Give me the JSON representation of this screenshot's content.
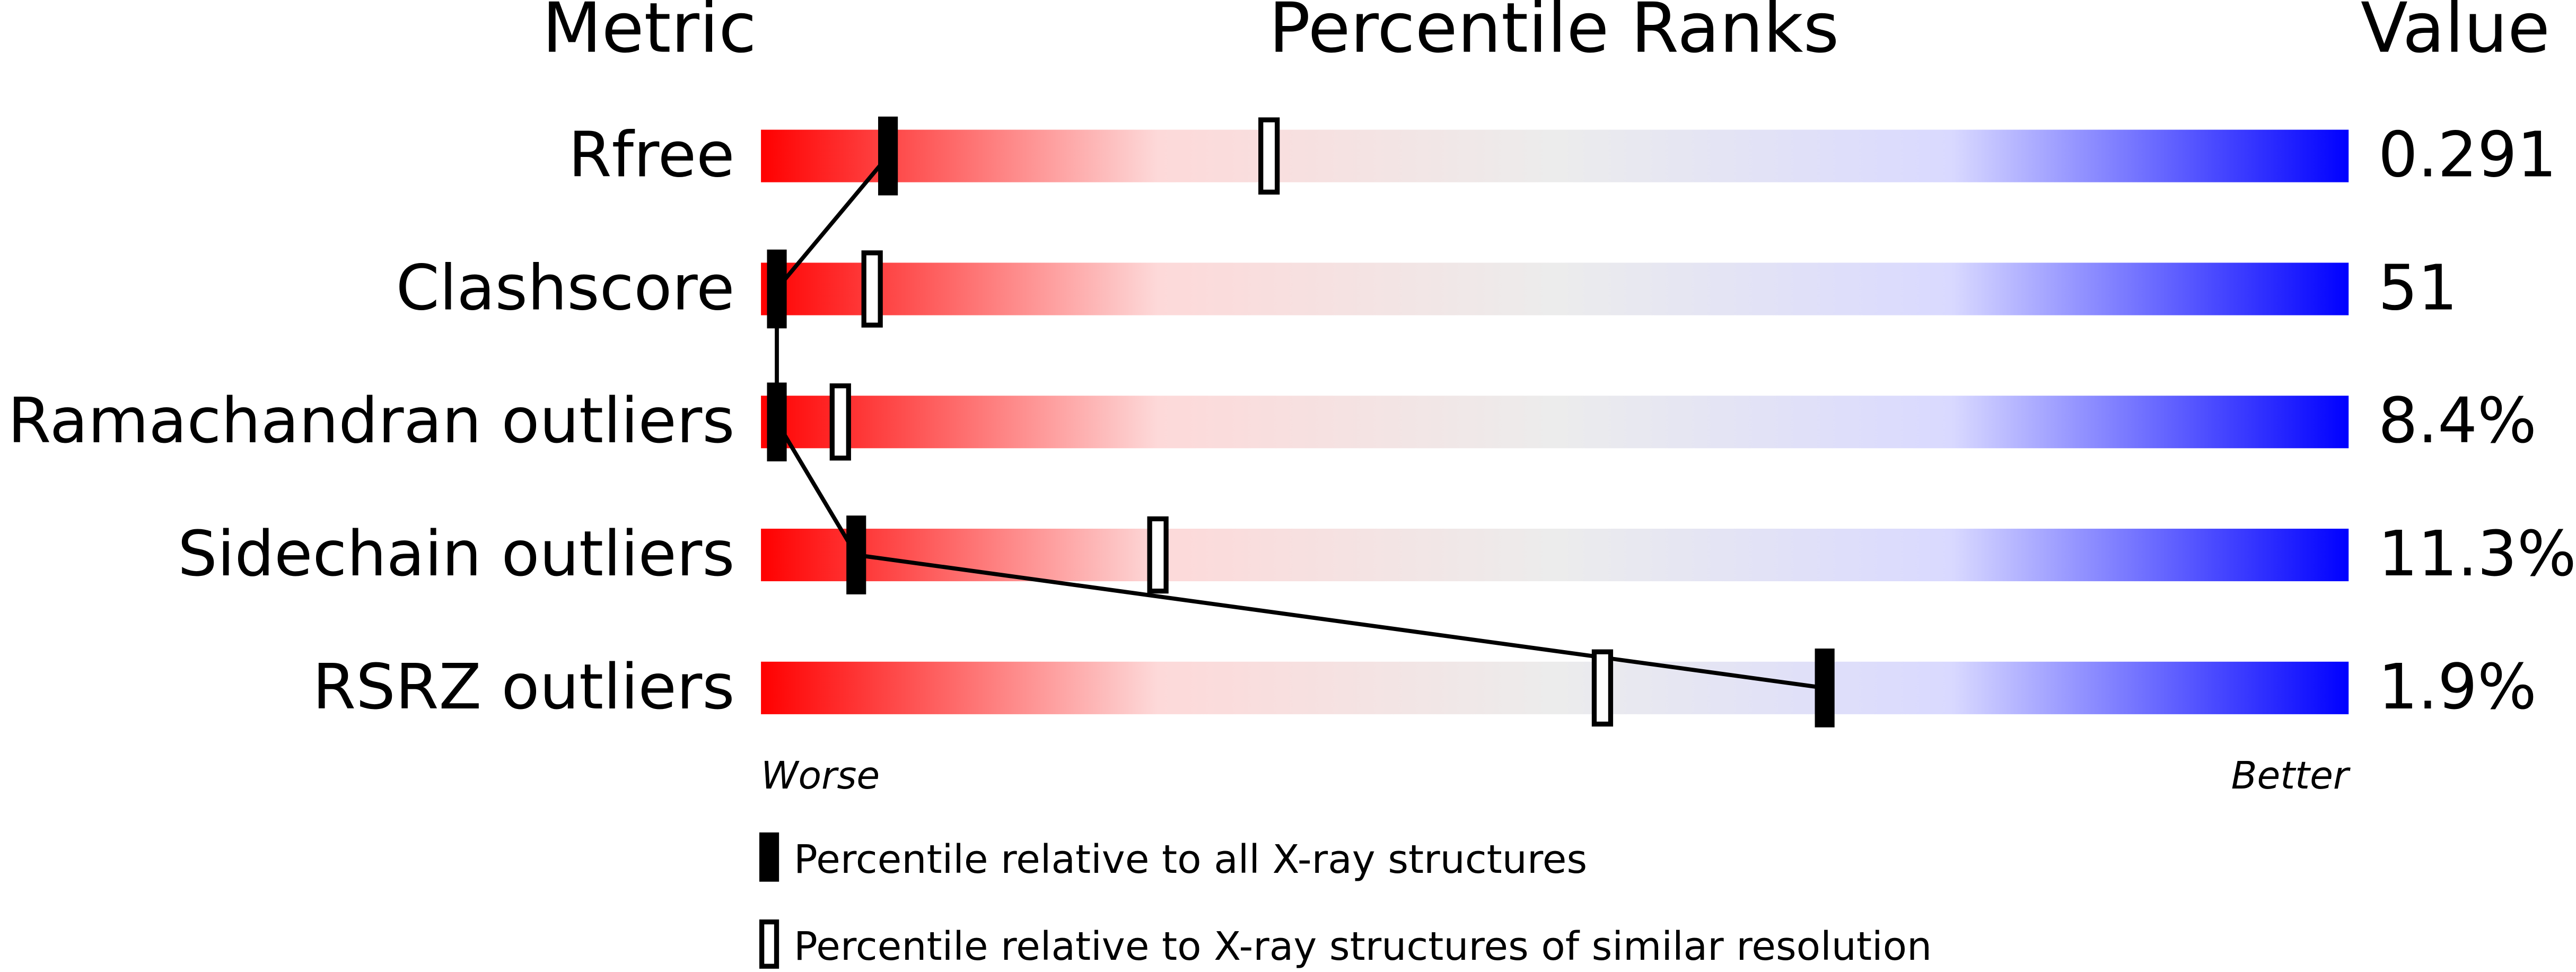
{
  "chart_data": {
    "type": "slider",
    "headers": {
      "metric": "Metric",
      "percentile": "Percentile Ranks",
      "value": "Value"
    },
    "categories": [
      "Rfree",
      "Clashscore",
      "Ramachandran outliers",
      "Sidechain outliers",
      "RSRZ outliers"
    ],
    "metric_values": [
      "0.291",
      "51",
      "8.4%",
      "11.3%",
      "1.9%"
    ],
    "series": [
      {
        "name": "Percentile relative to all X-ray structures",
        "color": "#000000",
        "style": "filled",
        "values": [
          8,
          1,
          1,
          6,
          67
        ]
      },
      {
        "name": "Percentile relative to X-ray structures of similar resolution",
        "color": "#000000",
        "style": "open",
        "values": [
          32,
          7,
          5,
          25,
          53
        ]
      }
    ],
    "xlim": [
      0,
      100
    ],
    "axis_labels": {
      "low": "Worse",
      "high": "Better"
    },
    "gradient": [
      "#ff0000",
      "#fdd9d9",
      "#ececec",
      "#d9d9ff",
      "#0000ff"
    ]
  }
}
